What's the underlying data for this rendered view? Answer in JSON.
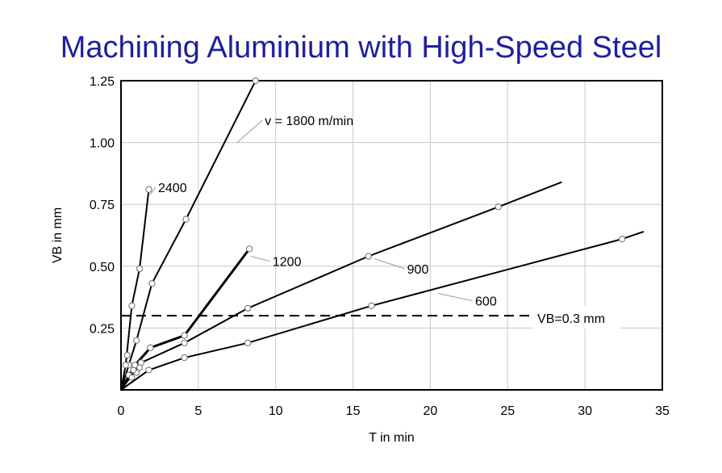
{
  "chart_data": {
    "type": "line",
    "title": "Machining Aluminium with High-Speed Steel",
    "xlabel": "T in min",
    "ylabel": "VB in mm",
    "xlim": [
      0,
      35
    ],
    "ylim": [
      0,
      1.25
    ],
    "xticks": [
      0,
      5,
      10,
      15,
      20,
      25,
      30,
      35
    ],
    "xtick_labels": [
      "0",
      "5",
      "10",
      "15",
      "20",
      "25",
      "30",
      "35"
    ],
    "yticks": [
      0.25,
      0.5,
      0.75,
      1.0,
      1.25
    ],
    "ytick_labels": [
      "0.25",
      "0.50",
      "0.75",
      "1.00",
      "1.25"
    ],
    "grid": true,
    "series": [
      {
        "name": "v = 1800 m/min",
        "points": [
          [
            0,
            0
          ],
          [
            0.5,
            0.1
          ],
          [
            1.0,
            0.2
          ],
          [
            2.0,
            0.43
          ],
          [
            4.2,
            0.69
          ],
          [
            8.7,
            1.25
          ]
        ],
        "marker_points": [
          [
            0.5,
            0.1
          ],
          [
            1.0,
            0.2
          ],
          [
            2.0,
            0.43
          ],
          [
            4.2,
            0.69
          ],
          [
            8.7,
            1.25
          ]
        ],
        "label_at": [
          9.3,
          1.09
        ]
      },
      {
        "name": "2400",
        "points": [
          [
            0,
            0
          ],
          [
            0.3,
            0.1
          ],
          [
            0.7,
            0.34
          ],
          [
            1.2,
            0.49
          ],
          [
            1.8,
            0.81
          ]
        ],
        "marker_points": [
          [
            0.3,
            0.1
          ],
          [
            0.7,
            0.34
          ],
          [
            1.2,
            0.49
          ],
          [
            1.8,
            0.81
          ]
        ],
        "label_at": [
          2.4,
          0.82
        ]
      },
      {
        "name": "1200",
        "points": [
          [
            0,
            0
          ],
          [
            0.9,
            0.1
          ],
          [
            1.9,
            0.17
          ],
          [
            4.1,
            0.22
          ],
          [
            8.3,
            0.57
          ]
        ],
        "marker_points": [
          [
            0.9,
            0.1
          ],
          [
            1.9,
            0.17
          ],
          [
            4.1,
            0.22
          ],
          [
            8.3,
            0.57
          ]
        ],
        "label_at": [
          9.8,
          0.52
        ]
      },
      {
        "name": "900",
        "points": [
          [
            0,
            0
          ],
          [
            1.3,
            0.11
          ],
          [
            4.1,
            0.19
          ],
          [
            8.2,
            0.33
          ],
          [
            16.0,
            0.54
          ],
          [
            24.4,
            0.74
          ],
          [
            28.5,
            0.84
          ]
        ],
        "marker_points": [
          [
            1.3,
            0.11
          ],
          [
            4.1,
            0.19
          ],
          [
            8.2,
            0.33
          ],
          [
            16.0,
            0.54
          ],
          [
            24.4,
            0.74
          ]
        ],
        "label_at": [
          18.5,
          0.49
        ]
      },
      {
        "name": "600",
        "points": [
          [
            0,
            0
          ],
          [
            1.8,
            0.08
          ],
          [
            4.1,
            0.13
          ],
          [
            8.2,
            0.19
          ],
          [
            16.2,
            0.34
          ],
          [
            32.4,
            0.61
          ],
          [
            33.8,
            0.64
          ]
        ],
        "marker_points": [
          [
            1.8,
            0.08
          ],
          [
            4.1,
            0.13
          ],
          [
            8.2,
            0.19
          ],
          [
            16.2,
            0.34
          ],
          [
            32.4,
            0.61
          ]
        ],
        "label_at": [
          22.9,
          0.36
        ]
      }
    ],
    "extra_markers": [
      [
        0.5,
        0.06
      ],
      [
        0.7,
        0.05
      ],
      [
        1.0,
        0.07
      ],
      [
        0.8,
        0.08
      ],
      [
        1.2,
        0.09
      ],
      [
        0.4,
        0.14
      ]
    ],
    "reference_line": {
      "label": "VB=0.3 mm",
      "y": 0.3,
      "x_from": 0,
      "x_to": 26.5,
      "style": "dashed"
    }
  }
}
